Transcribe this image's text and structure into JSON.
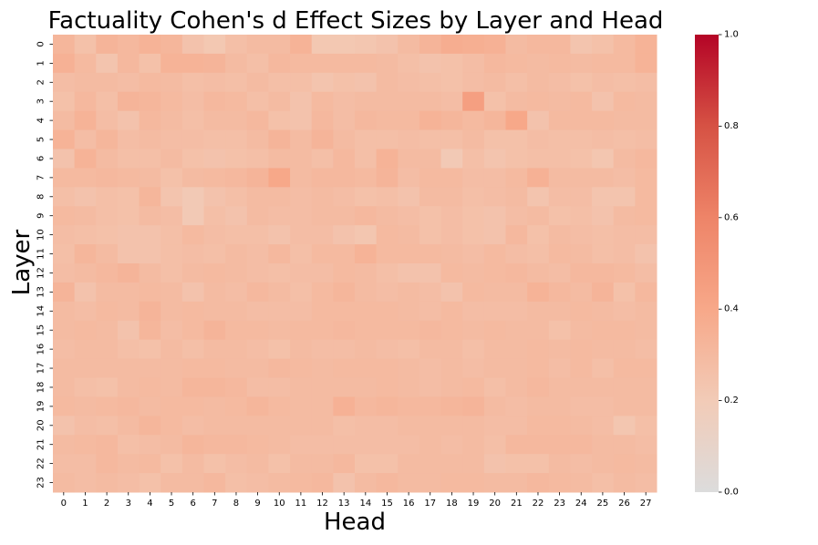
{
  "chart_data": {
    "type": "heatmap",
    "title": "Factuality Cohen's d Effect Sizes by Layer and Head",
    "xlabel": "Head",
    "ylabel": "Layer",
    "x_categories": [
      "0",
      "1",
      "2",
      "3",
      "4",
      "5",
      "6",
      "7",
      "8",
      "9",
      "10",
      "11",
      "12",
      "13",
      "14",
      "15",
      "16",
      "17",
      "18",
      "19",
      "20",
      "21",
      "22",
      "23",
      "24",
      "25",
      "26",
      "27"
    ],
    "y_categories": [
      "0",
      "1",
      "2",
      "3",
      "4",
      "5",
      "6",
      "7",
      "8",
      "9",
      "10",
      "11",
      "12",
      "13",
      "14",
      "15",
      "16",
      "17",
      "18",
      "19",
      "20",
      "21",
      "22",
      "23"
    ],
    "colorbar": {
      "min": 0.0,
      "max": 1.0,
      "ticks": [
        0.0,
        0.2,
        0.4,
        0.6,
        0.8,
        1.0
      ],
      "tick_labels": [
        "0.0",
        "0.2",
        "0.4",
        "0.6",
        "0.8",
        "1.0"
      ],
      "colormap": "coolwarm-like (grey to red)",
      "low_color": "#dcdcdc",
      "high_color": "#b40426"
    },
    "values": [
      [
        0.32,
        0.26,
        0.33,
        0.31,
        0.34,
        0.32,
        0.25,
        0.22,
        0.27,
        0.29,
        0.29,
        0.34,
        0.22,
        0.22,
        0.23,
        0.25,
        0.29,
        0.33,
        0.37,
        0.36,
        0.35,
        0.29,
        0.31,
        0.31,
        0.24,
        0.26,
        0.3,
        0.34
      ],
      [
        0.35,
        0.3,
        0.24,
        0.31,
        0.26,
        0.34,
        0.34,
        0.33,
        0.29,
        0.27,
        0.31,
        0.3,
        0.3,
        0.3,
        0.3,
        0.29,
        0.27,
        0.25,
        0.26,
        0.28,
        0.31,
        0.3,
        0.29,
        0.3,
        0.29,
        0.3,
        0.3,
        0.34
      ],
      [
        0.28,
        0.29,
        0.29,
        0.28,
        0.3,
        0.29,
        0.27,
        0.28,
        0.27,
        0.29,
        0.27,
        0.27,
        0.24,
        0.26,
        0.25,
        0.29,
        0.28,
        0.27,
        0.26,
        0.28,
        0.29,
        0.27,
        0.29,
        0.28,
        0.26,
        0.28,
        0.27,
        0.28
      ],
      [
        0.26,
        0.31,
        0.27,
        0.33,
        0.32,
        0.3,
        0.28,
        0.31,
        0.3,
        0.27,
        0.29,
        0.25,
        0.3,
        0.28,
        0.29,
        0.29,
        0.29,
        0.29,
        0.28,
        0.45,
        0.26,
        0.29,
        0.3,
        0.29,
        0.3,
        0.25,
        0.3,
        0.29
      ],
      [
        0.29,
        0.34,
        0.28,
        0.25,
        0.31,
        0.29,
        0.27,
        0.29,
        0.29,
        0.31,
        0.26,
        0.25,
        0.31,
        0.28,
        0.31,
        0.3,
        0.3,
        0.34,
        0.32,
        0.3,
        0.32,
        0.4,
        0.25,
        0.3,
        0.3,
        0.3,
        0.29,
        0.29
      ],
      [
        0.34,
        0.28,
        0.32,
        0.28,
        0.29,
        0.28,
        0.28,
        0.27,
        0.27,
        0.29,
        0.33,
        0.29,
        0.33,
        0.29,
        0.27,
        0.27,
        0.28,
        0.27,
        0.27,
        0.29,
        0.26,
        0.26,
        0.28,
        0.27,
        0.27,
        0.28,
        0.27,
        0.28
      ],
      [
        0.25,
        0.34,
        0.29,
        0.27,
        0.27,
        0.29,
        0.26,
        0.25,
        0.26,
        0.27,
        0.29,
        0.29,
        0.27,
        0.31,
        0.27,
        0.34,
        0.29,
        0.29,
        0.21,
        0.27,
        0.24,
        0.26,
        0.27,
        0.27,
        0.26,
        0.23,
        0.29,
        0.31
      ],
      [
        0.3,
        0.3,
        0.31,
        0.3,
        0.29,
        0.26,
        0.29,
        0.3,
        0.31,
        0.33,
        0.4,
        0.29,
        0.31,
        0.31,
        0.3,
        0.33,
        0.28,
        0.3,
        0.3,
        0.28,
        0.28,
        0.3,
        0.35,
        0.29,
        0.29,
        0.29,
        0.28,
        0.3
      ],
      [
        0.27,
        0.25,
        0.27,
        0.26,
        0.32,
        0.24,
        0.21,
        0.25,
        0.27,
        0.29,
        0.29,
        0.28,
        0.29,
        0.28,
        0.26,
        0.27,
        0.25,
        0.29,
        0.29,
        0.27,
        0.28,
        0.29,
        0.24,
        0.28,
        0.28,
        0.24,
        0.24,
        0.3
      ],
      [
        0.3,
        0.29,
        0.27,
        0.26,
        0.29,
        0.28,
        0.21,
        0.27,
        0.25,
        0.29,
        0.28,
        0.28,
        0.29,
        0.29,
        0.31,
        0.29,
        0.28,
        0.26,
        0.28,
        0.26,
        0.25,
        0.28,
        0.29,
        0.26,
        0.27,
        0.25,
        0.29,
        0.3
      ],
      [
        0.28,
        0.27,
        0.26,
        0.25,
        0.25,
        0.27,
        0.3,
        0.28,
        0.27,
        0.27,
        0.25,
        0.28,
        0.28,
        0.25,
        0.23,
        0.3,
        0.29,
        0.26,
        0.28,
        0.26,
        0.25,
        0.31,
        0.26,
        0.29,
        0.28,
        0.27,
        0.28,
        0.28
      ],
      [
        0.27,
        0.32,
        0.29,
        0.25,
        0.25,
        0.27,
        0.28,
        0.27,
        0.29,
        0.28,
        0.31,
        0.27,
        0.3,
        0.3,
        0.34,
        0.3,
        0.3,
        0.3,
        0.29,
        0.28,
        0.3,
        0.28,
        0.27,
        0.3,
        0.29,
        0.27,
        0.28,
        0.25
      ],
      [
        0.28,
        0.29,
        0.31,
        0.33,
        0.29,
        0.27,
        0.29,
        0.3,
        0.29,
        0.28,
        0.27,
        0.28,
        0.28,
        0.3,
        0.29,
        0.27,
        0.25,
        0.25,
        0.3,
        0.29,
        0.3,
        0.31,
        0.29,
        0.28,
        0.31,
        0.31,
        0.3,
        0.28
      ],
      [
        0.33,
        0.25,
        0.29,
        0.29,
        0.3,
        0.29,
        0.25,
        0.29,
        0.28,
        0.31,
        0.29,
        0.27,
        0.3,
        0.32,
        0.29,
        0.28,
        0.29,
        0.28,
        0.25,
        0.3,
        0.29,
        0.29,
        0.34,
        0.31,
        0.29,
        0.33,
        0.26,
        0.31
      ],
      [
        0.29,
        0.28,
        0.3,
        0.29,
        0.33,
        0.29,
        0.3,
        0.29,
        0.29,
        0.28,
        0.28,
        0.28,
        0.3,
        0.3,
        0.3,
        0.3,
        0.29,
        0.28,
        0.3,
        0.28,
        0.28,
        0.28,
        0.29,
        0.29,
        0.3,
        0.29,
        0.28,
        0.29
      ],
      [
        0.29,
        0.3,
        0.29,
        0.25,
        0.32,
        0.28,
        0.3,
        0.33,
        0.3,
        0.3,
        0.29,
        0.3,
        0.3,
        0.31,
        0.3,
        0.3,
        0.3,
        0.31,
        0.3,
        0.29,
        0.3,
        0.29,
        0.29,
        0.26,
        0.29,
        0.3,
        0.3,
        0.29
      ],
      [
        0.28,
        0.29,
        0.29,
        0.27,
        0.26,
        0.29,
        0.27,
        0.29,
        0.29,
        0.28,
        0.26,
        0.29,
        0.28,
        0.28,
        0.29,
        0.28,
        0.27,
        0.29,
        0.29,
        0.27,
        0.29,
        0.29,
        0.3,
        0.29,
        0.3,
        0.29,
        0.29,
        0.28
      ],
      [
        0.29,
        0.29,
        0.29,
        0.29,
        0.29,
        0.29,
        0.3,
        0.3,
        0.29,
        0.29,
        0.31,
        0.3,
        0.29,
        0.3,
        0.3,
        0.3,
        0.29,
        0.28,
        0.29,
        0.28,
        0.29,
        0.29,
        0.3,
        0.28,
        0.3,
        0.27,
        0.3,
        0.3
      ],
      [
        0.29,
        0.27,
        0.26,
        0.29,
        0.3,
        0.29,
        0.32,
        0.32,
        0.31,
        0.28,
        0.28,
        0.29,
        0.29,
        0.29,
        0.29,
        0.3,
        0.29,
        0.28,
        0.29,
        0.3,
        0.27,
        0.29,
        0.31,
        0.29,
        0.29,
        0.29,
        0.29,
        0.29
      ],
      [
        0.3,
        0.29,
        0.3,
        0.31,
        0.29,
        0.3,
        0.3,
        0.29,
        0.3,
        0.32,
        0.3,
        0.29,
        0.29,
        0.35,
        0.31,
        0.32,
        0.31,
        0.31,
        0.32,
        0.33,
        0.29,
        0.28,
        0.29,
        0.29,
        0.28,
        0.28,
        0.29,
        0.29
      ],
      [
        0.25,
        0.28,
        0.27,
        0.29,
        0.32,
        0.3,
        0.28,
        0.29,
        0.29,
        0.29,
        0.29,
        0.29,
        0.29,
        0.27,
        0.28,
        0.28,
        0.29,
        0.29,
        0.29,
        0.29,
        0.28,
        0.28,
        0.3,
        0.3,
        0.29,
        0.28,
        0.23,
        0.27
      ],
      [
        0.29,
        0.3,
        0.31,
        0.27,
        0.28,
        0.29,
        0.32,
        0.31,
        0.31,
        0.3,
        0.29,
        0.28,
        0.28,
        0.28,
        0.28,
        0.28,
        0.28,
        0.29,
        0.28,
        0.29,
        0.27,
        0.31,
        0.31,
        0.31,
        0.31,
        0.29,
        0.29,
        0.28
      ],
      [
        0.28,
        0.28,
        0.31,
        0.29,
        0.3,
        0.26,
        0.29,
        0.26,
        0.28,
        0.29,
        0.26,
        0.29,
        0.29,
        0.31,
        0.26,
        0.26,
        0.29,
        0.29,
        0.29,
        0.29,
        0.25,
        0.26,
        0.26,
        0.29,
        0.28,
        0.29,
        0.3,
        0.29
      ],
      [
        0.29,
        0.28,
        0.29,
        0.28,
        0.26,
        0.29,
        0.29,
        0.31,
        0.27,
        0.28,
        0.29,
        0.3,
        0.31,
        0.25,
        0.29,
        0.31,
        0.29,
        0.29,
        0.3,
        0.3,
        0.29,
        0.29,
        0.31,
        0.3,
        0.29,
        0.27,
        0.29,
        0.28
      ]
    ]
  }
}
